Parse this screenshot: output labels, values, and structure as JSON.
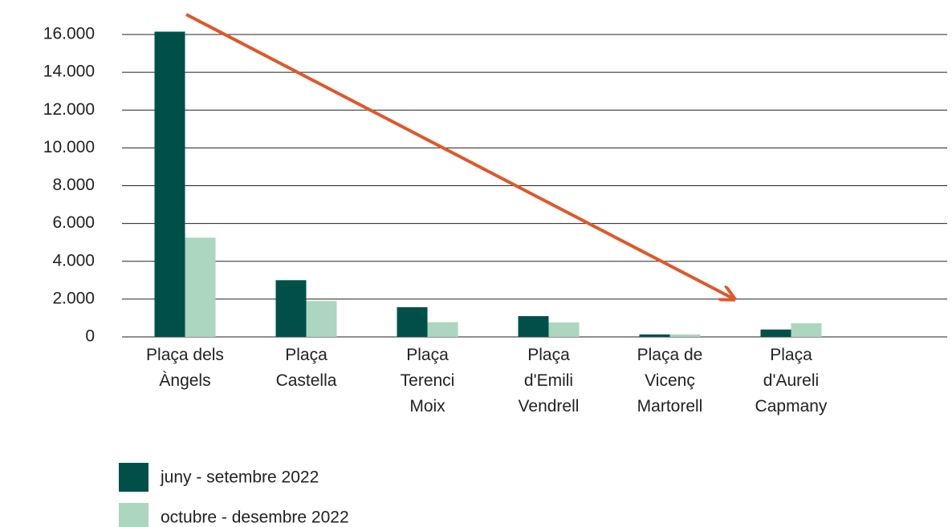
{
  "chart_data": {
    "type": "bar",
    "categories": [
      "Plaça dels\nÀngels",
      "Plaça\nCastella",
      "Plaça\nTerenci\nMoix",
      "Plaça\nd'Emili\nVendrell",
      "Plaça de\nVicenç\nMartorell",
      "Plaça\nd'Aureli\nCapmany"
    ],
    "series": [
      {
        "name": "juny - setembre 2022",
        "color": "#00504a",
        "values": [
          16150,
          3000,
          1570,
          1100,
          130,
          390
        ]
      },
      {
        "name": "octubre - desembre 2022",
        "color": "#acd6bf",
        "values": [
          5250,
          1900,
          780,
          760,
          130,
          720
        ]
      }
    ],
    "ylim": [
      0,
      16000
    ],
    "yticks": [
      0,
      {
        "value": 2000,
        "label": "2.000"
      },
      {
        "value": 4000,
        "label": "4.000"
      },
      {
        "value": 6000,
        "label": "6.000"
      },
      {
        "value": 8000,
        "label": "8.000"
      },
      {
        "value": 10000,
        "label": "10.000"
      },
      {
        "value": 12000,
        "label": "12.000"
      },
      {
        "value": 14000,
        "label": "14.000"
      },
      {
        "value": 16000,
        "label": "16.000"
      }
    ],
    "grid": true
  }
}
